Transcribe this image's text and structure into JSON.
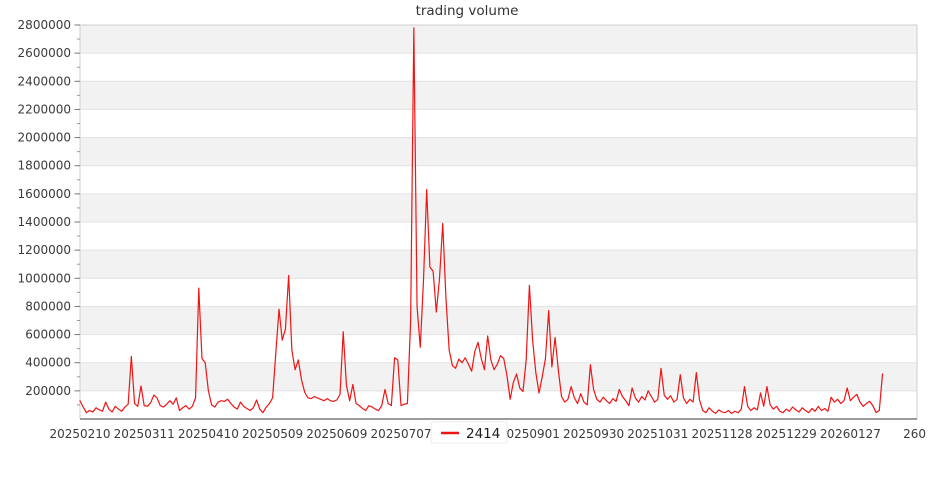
{
  "title": "trading volume",
  "legend": {
    "series_label": "2414",
    "marker_color": "#f01414"
  },
  "colors": {
    "line": "#f01414",
    "band_gray": "#f2f2f2",
    "gridline": "#e2e2e2",
    "spine_light": "#cfcfcf",
    "spine_bottom": "#8e8e8e",
    "tick_text": "#3b3b3b",
    "title_text": "#333333"
  },
  "chart_data": {
    "type": "line",
    "title": "trading volume",
    "ylim": [
      0,
      2800000
    ],
    "y_ticks": [
      200000,
      400000,
      600000,
      800000,
      1000000,
      1200000,
      1400000,
      1600000,
      1800000,
      2000000,
      2200000,
      2400000,
      2600000,
      2800000
    ],
    "x_tick_labels": [
      {
        "index": 0,
        "label": "20250210"
      },
      {
        "index": 20,
        "label": "20250311"
      },
      {
        "index": 40,
        "label": "20250410"
      },
      {
        "index": 60,
        "label": "20250509"
      },
      {
        "index": 80,
        "label": "20250609"
      },
      {
        "index": 100,
        "label": "20250707"
      },
      {
        "index": 140,
        "label": "20250901"
      },
      {
        "index": 160,
        "label": "20250930"
      },
      {
        "index": 180,
        "label": "20251031"
      },
      {
        "index": 200,
        "label": "20251128"
      },
      {
        "index": 220,
        "label": "20251229"
      },
      {
        "index": 240,
        "label": "20260127"
      },
      {
        "index": 260,
        "label": "260"
      }
    ],
    "grid": "horizontal-bands",
    "legend_position": "bottom-center",
    "series": [
      {
        "name": "2414",
        "color": "#f01414",
        "values": [
          130000,
          85000,
          45000,
          60000,
          50000,
          80000,
          65000,
          55000,
          120000,
          70000,
          50000,
          90000,
          70000,
          55000,
          85000,
          105000,
          445000,
          110000,
          90000,
          235000,
          95000,
          90000,
          115000,
          170000,
          150000,
          95000,
          85000,
          105000,
          130000,
          105000,
          150000,
          60000,
          80000,
          95000,
          70000,
          90000,
          150000,
          930000,
          430000,
          400000,
          200000,
          100000,
          85000,
          120000,
          130000,
          125000,
          140000,
          110000,
          85000,
          70000,
          120000,
          90000,
          75000,
          60000,
          80000,
          135000,
          70000,
          45000,
          85000,
          110000,
          150000,
          470000,
          780000,
          560000,
          640000,
          1020000,
          490000,
          350000,
          420000,
          280000,
          190000,
          150000,
          145000,
          160000,
          150000,
          140000,
          130000,
          145000,
          130000,
          125000,
          135000,
          175000,
          620000,
          240000,
          130000,
          245000,
          110000,
          95000,
          75000,
          60000,
          95000,
          85000,
          70000,
          60000,
          95000,
          210000,
          110000,
          95000,
          435000,
          420000,
          95000,
          105000,
          110000,
          700000,
          2780000,
          800000,
          510000,
          980000,
          1630000,
          1080000,
          1050000,
          760000,
          1000000,
          1390000,
          860000,
          490000,
          380000,
          360000,
          425000,
          400000,
          435000,
          390000,
          340000,
          480000,
          545000,
          430000,
          350000,
          590000,
          420000,
          350000,
          390000,
          450000,
          430000,
          310000,
          140000,
          260000,
          320000,
          220000,
          195000,
          420000,
          950000,
          560000,
          330000,
          185000,
          300000,
          430000,
          770000,
          370000,
          580000,
          350000,
          160000,
          120000,
          140000,
          230000,
          150000,
          110000,
          180000,
          120000,
          100000,
          385000,
          210000,
          140000,
          120000,
          155000,
          130000,
          110000,
          145000,
          125000,
          210000,
          160000,
          130000,
          95000,
          220000,
          150000,
          120000,
          160000,
          135000,
          200000,
          160000,
          120000,
          140000,
          360000,
          170000,
          140000,
          165000,
          120000,
          140000,
          315000,
          150000,
          110000,
          140000,
          120000,
          330000,
          135000,
          60000,
          45000,
          80000,
          55000,
          40000,
          65000,
          50000,
          45000,
          60000,
          40000,
          55000,
          45000,
          70000,
          230000,
          90000,
          60000,
          80000,
          65000,
          185000,
          90000,
          230000,
          100000,
          70000,
          90000,
          55000,
          45000,
          70000,
          55000,
          85000,
          65000,
          50000,
          80000,
          60000,
          45000,
          75000,
          55000,
          90000,
          60000,
          75000,
          55000,
          155000,
          120000,
          140000,
          110000,
          130000,
          220000,
          130000,
          155000,
          175000,
          120000,
          90000,
          110000,
          125000,
          95000,
          45000,
          60000,
          320000
        ]
      }
    ]
  }
}
